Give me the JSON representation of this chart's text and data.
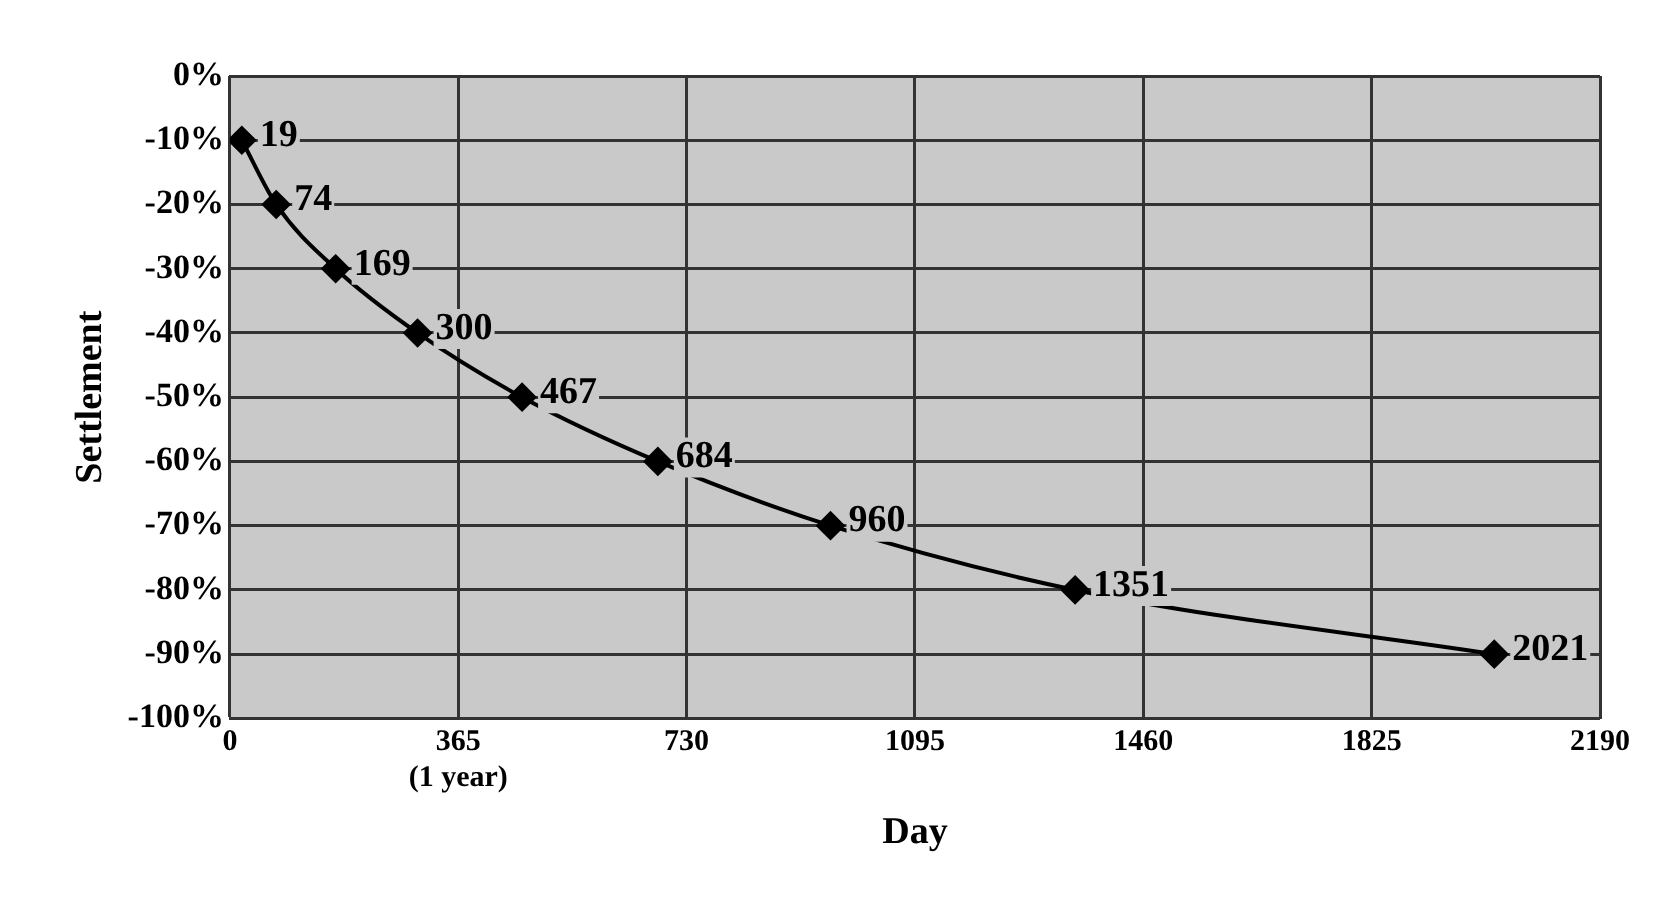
{
  "chart_data": {
    "type": "line",
    "xlabel": "Day",
    "ylabel": "Settlement",
    "x": [
      19,
      74,
      169,
      300,
      467,
      684,
      960,
      1351,
      2021
    ],
    "values": [
      -10,
      -20,
      -30,
      -40,
      -50,
      -60,
      -70,
      -80,
      -90
    ],
    "annotations": [
      {
        "text": "19",
        "x": 19,
        "y": -10
      },
      {
        "text": "74",
        "x": 74,
        "y": -20
      },
      {
        "text": "169",
        "x": 169,
        "y": -30
      },
      {
        "text": "300",
        "x": 300,
        "y": -40
      },
      {
        "text": "467",
        "x": 467,
        "y": -50
      },
      {
        "text": "684",
        "x": 684,
        "y": -60
      },
      {
        "text": "960",
        "x": 960,
        "y": -70
      },
      {
        "text": "1351",
        "x": 1351,
        "y": -80
      },
      {
        "text": "2021",
        "x": 2021,
        "y": -90
      }
    ],
    "color": "#000000",
    "marker": "diamond",
    "line_style": "solid",
    "grid": true,
    "legend": false,
    "xlim": [
      0,
      2190
    ],
    "xticks": [
      0,
      {
        "value": 365,
        "label": "365 (1 year)"
      },
      730,
      1095,
      1460,
      1825,
      2190
    ],
    "ylim": [
      -100,
      0
    ],
    "yticks": [
      {
        "value": 0,
        "label": "0%"
      },
      {
        "value": -10,
        "label": "-10%"
      },
      {
        "value": -20,
        "label": "-20%"
      },
      {
        "value": -30,
        "label": "-30%"
      },
      {
        "value": -40,
        "label": "-40%"
      },
      {
        "value": -50,
        "label": "-50%"
      },
      {
        "value": -60,
        "label": "-60%"
      },
      {
        "value": -70,
        "label": "-70%"
      },
      {
        "value": -80,
        "label": "-80%"
      },
      {
        "value": -90,
        "label": "-90%"
      },
      {
        "value": -100,
        "label": "-100%"
      }
    ]
  }
}
